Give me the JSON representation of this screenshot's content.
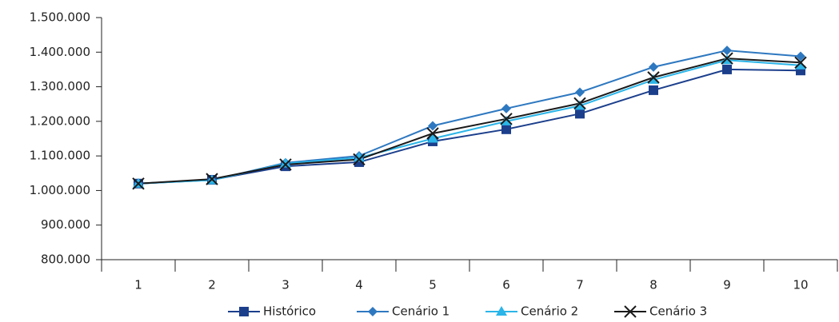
{
  "chart_data": {
    "type": "line",
    "categories": [
      "1",
      "2",
      "3",
      "4",
      "5",
      "6",
      "7",
      "8",
      "9",
      "10"
    ],
    "series": [
      {
        "name": "Histórico",
        "color": "#1c3f8c",
        "marker": "square",
        "values": [
          1020000,
          1031000,
          1070000,
          1082000,
          1142000,
          1177000,
          1222000,
          1290000,
          1350000,
          1347000
        ]
      },
      {
        "name": "Cenário 1",
        "color": "#2e78c0",
        "marker": "diamond",
        "values": [
          1020000,
          1030000,
          1080000,
          1100000,
          1187000,
          1237000,
          1284000,
          1357000,
          1405000,
          1388000
        ]
      },
      {
        "name": "Cenário 2",
        "color": "#2bb5e8",
        "marker": "triangle",
        "values": [
          1020000,
          1030000,
          1078000,
          1095000,
          1150000,
          1200000,
          1245000,
          1320000,
          1377000,
          1362000
        ]
      },
      {
        "name": "Cenário 3",
        "color": "#1a1a1a",
        "marker": "x",
        "values": [
          1020000,
          1033000,
          1075000,
          1090000,
          1165000,
          1207000,
          1252000,
          1327000,
          1382000,
          1370000
        ]
      }
    ],
    "ylim": [
      800000,
      1500000
    ],
    "yticks": [
      {
        "value": 800000,
        "label": "800.000"
      },
      {
        "value": 900000,
        "label": "900.000"
      },
      {
        "value": 1000000,
        "label": "1.000.000"
      },
      {
        "value": 1100000,
        "label": "1.100.000"
      },
      {
        "value": 1200000,
        "label": "1.200.000"
      },
      {
        "value": 1300000,
        "label": "1.300.000"
      },
      {
        "value": 1400000,
        "label": "1.400.000"
      },
      {
        "value": 1500000,
        "label": "1.500.000"
      }
    ],
    "grid": false,
    "legend": "bottom"
  }
}
